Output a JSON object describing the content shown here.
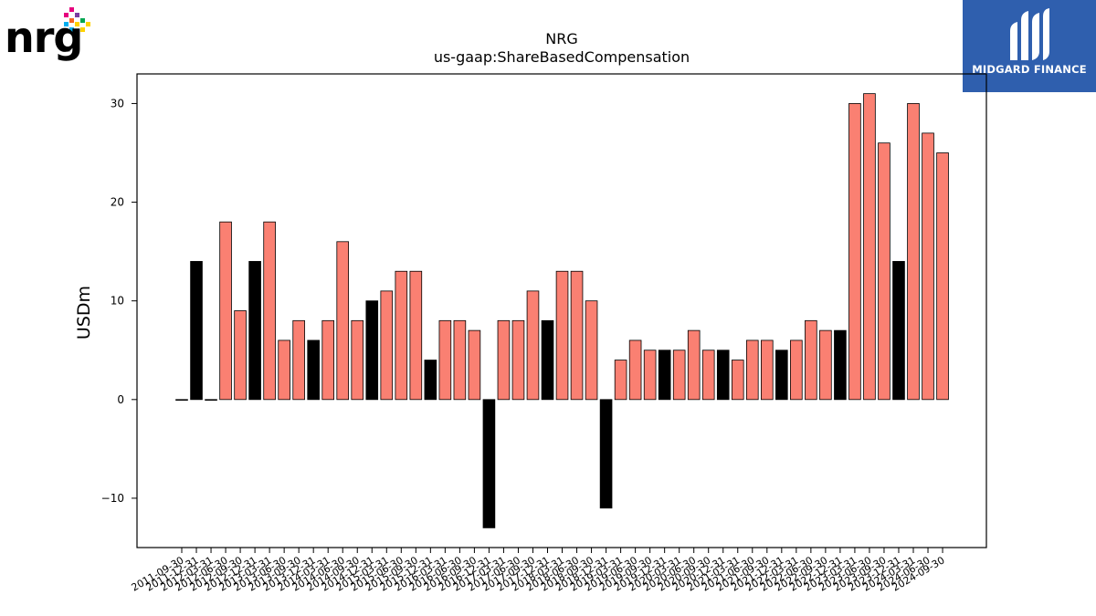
{
  "branding": {
    "company_logo": "nrg",
    "watermark_text": "MIDGARD FINANCE",
    "watermark_color": "#2f5fae"
  },
  "chart_data": {
    "type": "bar",
    "title": "NRG",
    "subtitle": "us-gaap:ShareBasedCompensation",
    "xlabel": "",
    "ylabel": "USDm",
    "ylim": [
      -15,
      33
    ],
    "yticks": [
      -10,
      0,
      10,
      20,
      30
    ],
    "grid": false,
    "legend": "none",
    "colors": {
      "primary": "#fa8072",
      "highlight": "#000000",
      "edge": "#000000"
    },
    "categories": [
      "2011-09-30",
      "2011-12-31",
      "2012-03-31",
      "2012-06-30",
      "2012-09-30",
      "2012-12-31",
      "2013-03-31",
      "2013-06-30",
      "2013-09-30",
      "2013-12-31",
      "2014-03-31",
      "2014-06-30",
      "2014-09-30",
      "2014-12-31",
      "2015-03-31",
      "2015-06-30",
      "2015-09-30",
      "2015-12-31",
      "2016-03-31",
      "2016-06-30",
      "2016-09-30",
      "2016-12-31",
      "2017-03-31",
      "2017-06-30",
      "2017-09-30",
      "2017-12-31",
      "2018-03-31",
      "2018-06-30",
      "2018-09-30",
      "2018-12-31",
      "2019-03-31",
      "2019-06-30",
      "2019-09-30",
      "2019-12-31",
      "2020-03-31",
      "2020-06-30",
      "2020-09-30",
      "2020-12-31",
      "2021-03-31",
      "2021-06-30",
      "2021-09-30",
      "2021-12-31",
      "2022-03-31",
      "2022-06-30",
      "2022-09-30",
      "2022-12-31",
      "2023-03-31",
      "2023-06-30",
      "2023-09-30",
      "2023-12-31",
      "2024-03-31",
      "2024-06-30",
      "2024-09-30"
    ],
    "values": [
      0,
      14,
      0,
      18,
      9,
      14,
      18,
      6,
      8,
      6,
      8,
      16,
      8,
      10,
      11,
      13,
      13,
      4,
      8,
      8,
      7,
      -13,
      8,
      8,
      11,
      8,
      13,
      13,
      10,
      -11,
      4,
      6,
      5,
      5,
      5,
      7,
      5,
      5,
      4,
      6,
      6,
      5,
      6,
      8,
      7,
      7,
      30,
      31,
      26,
      14,
      30,
      27,
      25
    ],
    "bar_colors": [
      "black",
      "black",
      "black",
      "salmon",
      "salmon",
      "black",
      "salmon",
      "salmon",
      "salmon",
      "black",
      "salmon",
      "salmon",
      "salmon",
      "black",
      "salmon",
      "salmon",
      "salmon",
      "black",
      "salmon",
      "salmon",
      "salmon",
      "black",
      "salmon",
      "salmon",
      "salmon",
      "black",
      "salmon",
      "salmon",
      "salmon",
      "black",
      "salmon",
      "salmon",
      "salmon",
      "black",
      "salmon",
      "salmon",
      "salmon",
      "black",
      "salmon",
      "salmon",
      "salmon",
      "black",
      "salmon",
      "salmon",
      "salmon",
      "black",
      "salmon",
      "salmon",
      "salmon",
      "black",
      "salmon",
      "salmon",
      "salmon"
    ]
  }
}
